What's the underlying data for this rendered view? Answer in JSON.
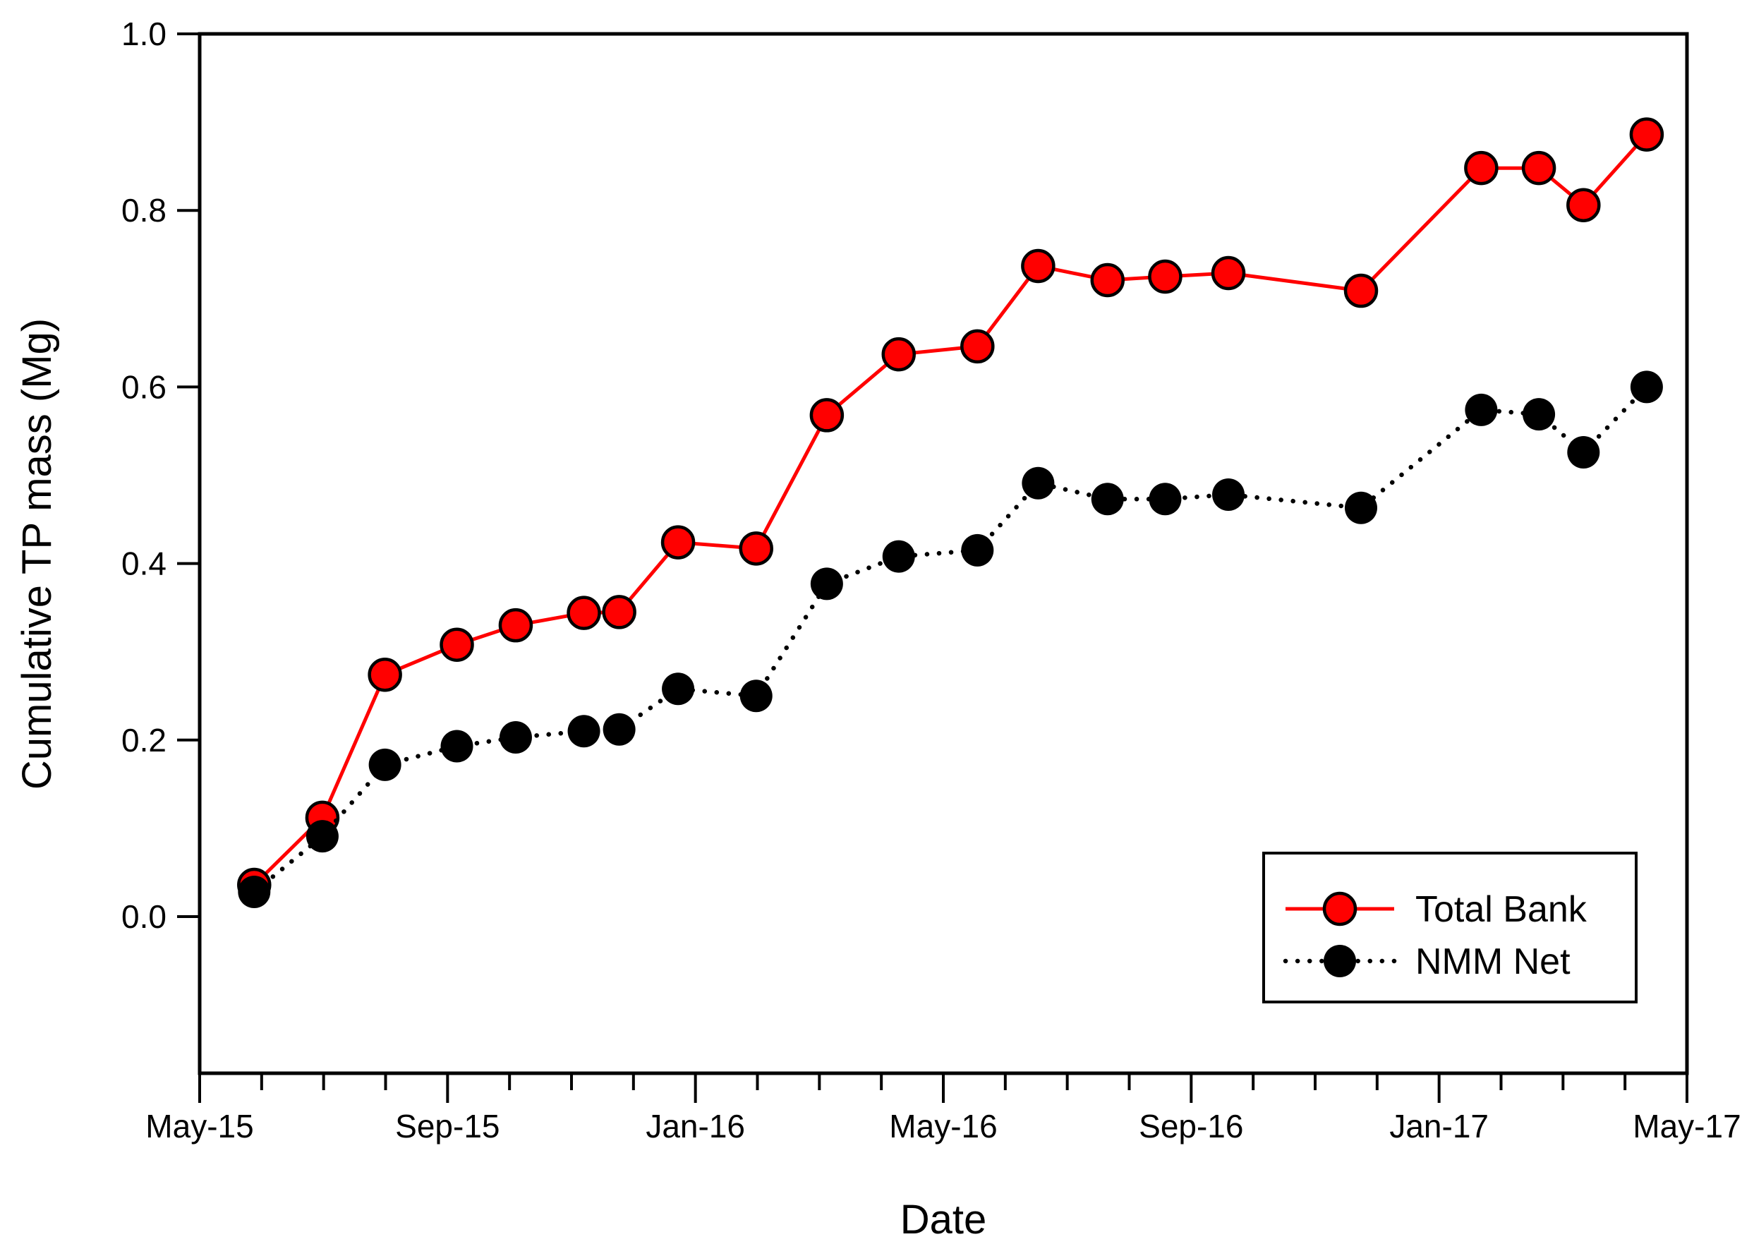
{
  "figure": {
    "background": "#ffffff",
    "frame_color": "#000000"
  },
  "chart_data": {
    "type": "line",
    "title": "",
    "xlabel": "Date",
    "ylabel": "Cumulative TP mass (Mg)",
    "x_axis": {
      "unit": "months since May-2015",
      "range_months": [
        0,
        24
      ],
      "minor_tick_every_months": 1,
      "major_ticks": [
        {
          "m": 0,
          "label": "May-15"
        },
        {
          "m": 4,
          "label": "Sep-15"
        },
        {
          "m": 8,
          "label": "Jan-16"
        },
        {
          "m": 12,
          "label": "May-16"
        },
        {
          "m": 16,
          "label": "Sep-16"
        },
        {
          "m": 20,
          "label": "Jan-17"
        },
        {
          "m": 24,
          "label": "May-17"
        }
      ]
    },
    "y_axis": {
      "min": -0.18,
      "max": 1.0,
      "ticks": [
        {
          "v": 0.0,
          "label": "0.0"
        },
        {
          "v": 0.2,
          "label": "0.2"
        },
        {
          "v": 0.4,
          "label": "0.4"
        },
        {
          "v": 0.6,
          "label": "0.6"
        },
        {
          "v": 0.8,
          "label": "0.8"
        },
        {
          "v": 1.0,
          "label": "1.0"
        }
      ]
    },
    "x_months": [
      0.88,
      1.98,
      2.99,
      4.15,
      5.1,
      6.2,
      6.77,
      7.72,
      8.98,
      10.12,
      11.28,
      12.55,
      13.53,
      14.65,
      15.58,
      16.6,
      18.74,
      20.68,
      21.61,
      22.33,
      23.35
    ],
    "series": [
      {
        "name": "Total Bank",
        "color": "#ff0000",
        "marker": "circle-red-black-outline",
        "line_style": "solid",
        "values": [
          0.036,
          0.112,
          0.274,
          0.308,
          0.33,
          0.344,
          0.345,
          0.424,
          0.417,
          0.568,
          0.637,
          0.646,
          0.737,
          0.721,
          0.725,
          0.729,
          0.709,
          0.848,
          0.848,
          0.806,
          0.886
        ]
      },
      {
        "name": "NMM Net",
        "color": "#000000",
        "marker": "circle-black-filled",
        "line_style": "dotted",
        "values": [
          0.028,
          0.091,
          0.172,
          0.193,
          0.203,
          0.21,
          0.212,
          0.258,
          0.25,
          0.377,
          0.408,
          0.415,
          0.491,
          0.473,
          0.473,
          0.478,
          0.463,
          0.574,
          0.569,
          0.526,
          0.6
        ]
      }
    ],
    "legend": {
      "position": "bottom-right",
      "items": [
        {
          "label": "Total Bank"
        },
        {
          "label": "NMM Net"
        }
      ]
    },
    "grid": false
  }
}
